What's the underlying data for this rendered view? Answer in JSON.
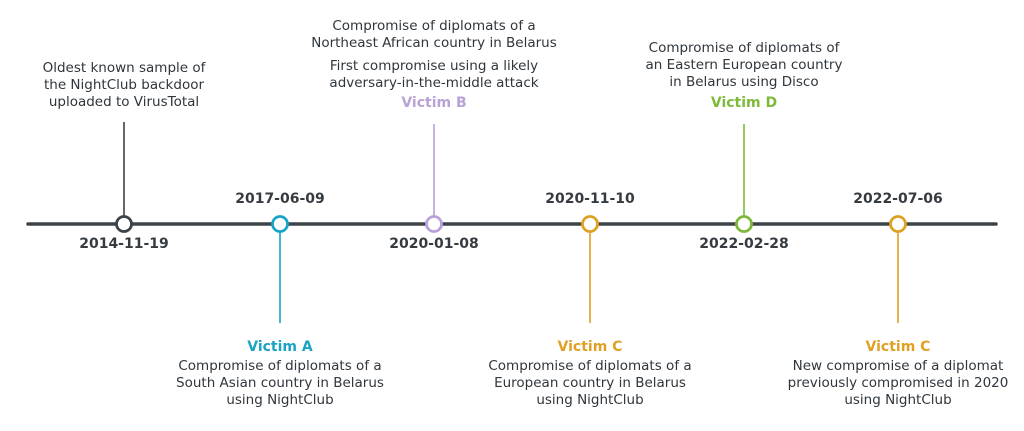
{
  "colors": {
    "axis": "#3d4349",
    "dark": "#3d4349",
    "victim_a": "#1aa3c4",
    "victim_b": "#b8a2d6",
    "victim_c": "#e0a024",
    "victim_d": "#7dba3a"
  },
  "events": [
    {
      "date": "2014-11-19",
      "desc_lines": [
        "Oldest known sample of",
        "the NightClub backdoor",
        "uploaded to VirusTotal"
      ]
    },
    {
      "date": "2017-06-09",
      "victim": "Victim A",
      "desc_lines": [
        "Compromise of diplomats of a",
        "South Asian country in Belarus",
        "using NightClub"
      ]
    },
    {
      "date": "2020-01-08",
      "victim": "Victim B",
      "desc_lines": [
        "Compromise of diplomats of a",
        "Northeast African country in Belarus",
        "First compromise using a likely",
        "adversary-in-the-middle attack"
      ]
    },
    {
      "date": "2020-11-10",
      "victim": "Victim C",
      "desc_lines": [
        "Compromise of diplomats of a",
        "European country in Belarus",
        "using NightClub"
      ]
    },
    {
      "date": "2022-02-28",
      "victim": "Victim D",
      "desc_lines": [
        "Compromise of diplomats of",
        "an Eastern European country",
        "in Belarus using Disco"
      ]
    },
    {
      "date": "2022-07-06",
      "victim": "Victim C",
      "desc_lines": [
        "New compromise of a diplomat",
        "previously compromised in 2020",
        "using NightClub"
      ]
    }
  ]
}
